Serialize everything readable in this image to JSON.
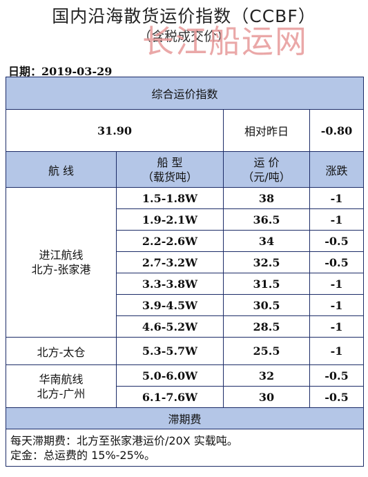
{
  "header": {
    "title": "国内沿海散货运价指数（CCBF）",
    "subtitle": "（含税成交价）",
    "watermark": "长江船运网"
  },
  "date_label": "日期：2019-03-29",
  "composite": {
    "section_title": "综合运价指数",
    "value": "31.90",
    "change_label": "相对昨日",
    "change_value": "-0.80"
  },
  "columns": {
    "route": "航 线",
    "ship_type": "船 型",
    "ship_type_sub": "（载货吨）",
    "freight": "运 价",
    "freight_sub": "（元/吨）",
    "change": "涨跌"
  },
  "routes": [
    {
      "name": "进江航线",
      "name2": "北方-张家港"
    },
    {
      "name": "北方-太仓",
      "name2": ""
    },
    {
      "name": "华南航线",
      "name2": "北方-广州"
    }
  ],
  "rows": [
    {
      "ship": "1.5-1.8W",
      "price": "38",
      "change": "-1"
    },
    {
      "ship": "1.9-2.1W",
      "price": "36.5",
      "change": "-1"
    },
    {
      "ship": "2.2-2.6W",
      "price": "34",
      "change": "-0.5"
    },
    {
      "ship": "2.7-3.2W",
      "price": "32.5",
      "change": "-0.5"
    },
    {
      "ship": "3.3-3.8W",
      "price": "31.5",
      "change": "-1"
    },
    {
      "ship": "3.9-4.5W",
      "price": "30.5",
      "change": "-1"
    },
    {
      "ship": "4.6-5.2W",
      "price": "28.5",
      "change": "-1"
    },
    {
      "ship": "5.3-5.7W",
      "price": "25.5",
      "change": "-1"
    },
    {
      "ship": "5.0-6.0W",
      "price": "32",
      "change": "-0.5"
    },
    {
      "ship": "6.1-7.6W",
      "price": "30",
      "change": "-0.5"
    }
  ],
  "demurrage": {
    "section_title": "滞期费",
    "line1": "每天滞期费：北方至张家港运价/20X 实载吨。",
    "line2": "定金：总运费的 15%-25%。"
  }
}
